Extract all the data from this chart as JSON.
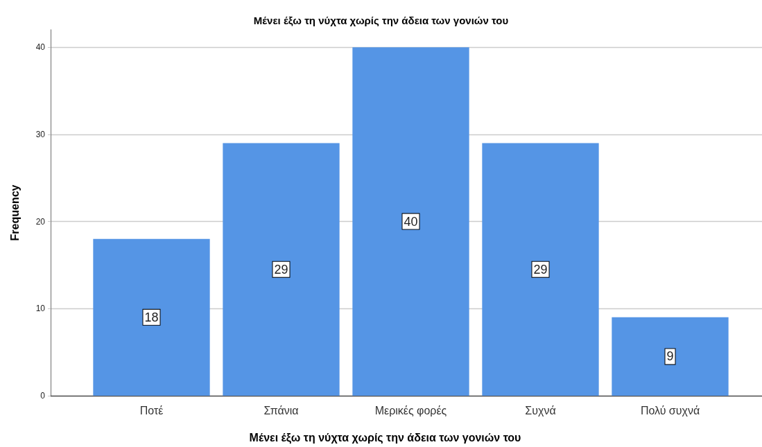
{
  "chart_data": {
    "type": "bar",
    "title": "Μένει έξω τη νύχτα χωρίς την άδεια των γονιών του",
    "xlabel": "Μένει έξω τη νύχτα χωρίς την άδεια των γονιών του",
    "ylabel": "Frequency",
    "categories": [
      "Ποτέ",
      "Σπάνια",
      "Μερικές φορές",
      "Συχνά",
      "Πολύ συχνά"
    ],
    "values": [
      18,
      29,
      40,
      29,
      9
    ],
    "color": "#5595e5",
    "ylim": [
      0,
      42
    ],
    "yticks": [
      0,
      10,
      20,
      30,
      40
    ],
    "grid": "y",
    "data_labels": true
  }
}
